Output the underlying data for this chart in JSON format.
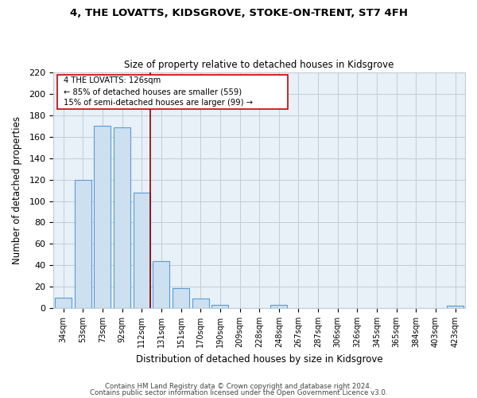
{
  "title": "4, THE LOVATTS, KIDSGROVE, STOKE-ON-TRENT, ST7 4FH",
  "subtitle": "Size of property relative to detached houses in Kidsgrove",
  "xlabel": "Distribution of detached houses by size in Kidsgrove",
  "ylabel": "Number of detached properties",
  "bar_labels": [
    "34sqm",
    "53sqm",
    "73sqm",
    "92sqm",
    "112sqm",
    "131sqm",
    "151sqm",
    "170sqm",
    "190sqm",
    "209sqm",
    "228sqm",
    "248sqm",
    "267sqm",
    "287sqm",
    "306sqm",
    "326sqm",
    "345sqm",
    "365sqm",
    "384sqm",
    "403sqm",
    "423sqm"
  ],
  "bar_values": [
    10,
    120,
    170,
    169,
    108,
    44,
    19,
    9,
    3,
    0,
    0,
    3,
    0,
    0,
    0,
    0,
    0,
    0,
    0,
    0,
    2
  ],
  "bar_color": "#cce0f0",
  "bar_edge_color": "#5b9bd5",
  "red_line_after_bar": 4,
  "highlight_color": "#8b0000",
  "ylim": [
    0,
    220
  ],
  "yticks": [
    0,
    20,
    40,
    60,
    80,
    100,
    120,
    140,
    160,
    180,
    200,
    220
  ],
  "annotation_title": "4 THE LOVATTS: 126sqm",
  "annotation_line1": "← 85% of detached houses are smaller (559)",
  "annotation_line2": "15% of semi-detached houses are larger (99) →",
  "footnote1": "Contains HM Land Registry data © Crown copyright and database right 2024.",
  "footnote2": "Contains public sector information licensed under the Open Government Licence v3.0.",
  "plot_bg_color": "#e8f0f8",
  "fig_bg_color": "#ffffff",
  "grid_color": "#c0cdd8"
}
